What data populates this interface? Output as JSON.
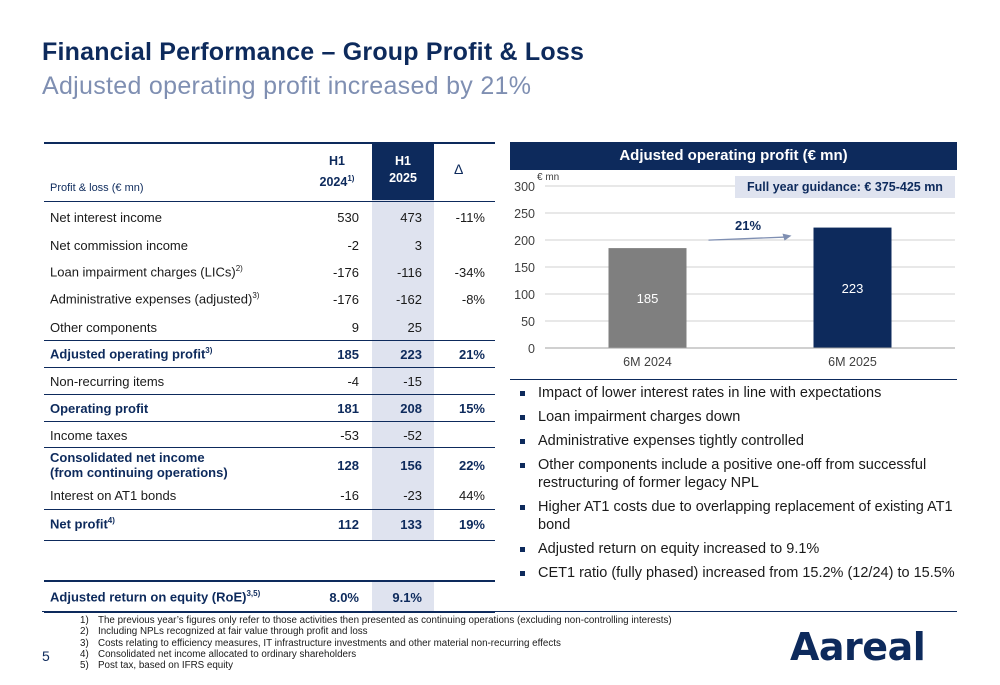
{
  "header": {
    "title": "Financial Performance – Group Profit & Loss",
    "subtitle": "Adjusted operating profit increased by 21%"
  },
  "table": {
    "label": "Profit & loss (€ mn)",
    "col1_line1": "H1",
    "col1_line2": "2024",
    "col1_sup": "1)",
    "col2_line1": "H1",
    "col2_line2": "2025",
    "col3": "Δ",
    "rows": [
      {
        "label": "Net interest income",
        "sup": "",
        "h1_2024": "530",
        "h1_2025": "473",
        "delta": "-11%"
      },
      {
        "label": "Net commission income",
        "sup": "",
        "h1_2024": "-2",
        "h1_2025": "3",
        "delta": ""
      },
      {
        "label": "Loan impairment charges (LICs)",
        "sup": "2)",
        "h1_2024": "-176",
        "h1_2025": "-116",
        "delta": "-34%"
      },
      {
        "label": "Administrative expenses (adjusted)",
        "sup": "3)",
        "h1_2024": "-176",
        "h1_2025": "-162",
        "delta": "-8%"
      },
      {
        "label": "Other components",
        "sup": "",
        "h1_2024": "9",
        "h1_2025": "25",
        "delta": ""
      },
      {
        "label": "Adjusted operating profit",
        "sup": "3)",
        "h1_2024": "185",
        "h1_2025": "223",
        "delta": "21%"
      },
      {
        "label": "Non-recurring items",
        "sup": "",
        "h1_2024": "-4",
        "h1_2025": "-15",
        "delta": ""
      },
      {
        "label": "Operating profit",
        "sup": "",
        "h1_2024": "181",
        "h1_2025": "208",
        "delta": "15%"
      },
      {
        "label": "Income taxes",
        "sup": "",
        "h1_2024": "-53",
        "h1_2025": "-52",
        "delta": ""
      },
      {
        "label": "Consolidated net income",
        "label2": "(from continuing operations)",
        "sup": "",
        "h1_2024": "128",
        "h1_2025": "156",
        "delta": "22%"
      },
      {
        "label": "Interest on AT1 bonds",
        "sup": "",
        "h1_2024": "-16",
        "h1_2025": "-23",
        "delta": "44%"
      },
      {
        "label": "Net profit",
        "sup": "4)",
        "h1_2024": "112",
        "h1_2025": "133",
        "delta": "19%"
      }
    ],
    "roe": {
      "label": "Adjusted return on equity (RoE)",
      "sup": "3,5)",
      "h1_2024": "8.0%",
      "h1_2025": "9.1%"
    }
  },
  "chart_panel": {
    "heading": "Adjusted operating profit (€ mn)",
    "unit": "€ mn",
    "guidance": "Full year guidance: € 375-425 mn",
    "growth_label": "21%"
  },
  "chart_data": {
    "type": "bar",
    "title": "Adjusted operating profit (€ mn)",
    "categories": [
      "6M 2024",
      "6M 2025"
    ],
    "values": [
      185,
      223
    ],
    "ylim": [
      0,
      300
    ],
    "yticks": [
      0,
      50,
      100,
      150,
      200,
      250,
      300
    ],
    "ylabel": "€ mn",
    "grid": true,
    "bar_colors": [
      "#7f7f7f",
      "#0d2a5c"
    ]
  },
  "bullets": [
    "Impact of lower interest rates in line with expectations",
    "Loan impairment charges down",
    "Administrative expenses tightly controlled",
    "Other components include a positive one-off from successful restructuring of former legacy NPL",
    "Higher AT1 costs due to overlapping replacement of existing AT1 bond",
    "Adjusted return on equity increased to 9.1%",
    "CET1 ratio (fully phased) increased from 15.2% (12/24) to 15.5%"
  ],
  "footnotes": [
    {
      "n": "1)",
      "text": "The previous year’s figures only refer to those activities then presented as continuing operations (excluding non-controlling interests)"
    },
    {
      "n": "2)",
      "text": "Including NPLs recognized at fair value through profit and loss"
    },
    {
      "n": "3)",
      "text": "Costs relating to efficiency measures, IT infrastructure investments and other material non-recurring effects"
    },
    {
      "n": "4)",
      "text": "Consolidated net income allocated to ordinary shareholders"
    },
    {
      "n": "5)",
      "text": "Post tax, based on IFRS equity"
    }
  ],
  "page_number": "5",
  "logo": "Aareal",
  "colors": {
    "primary": "#0d2a5c",
    "shade": "#dfe3ef",
    "grey_bar": "#7f7f7f",
    "subtitle": "#7f8fb2"
  }
}
